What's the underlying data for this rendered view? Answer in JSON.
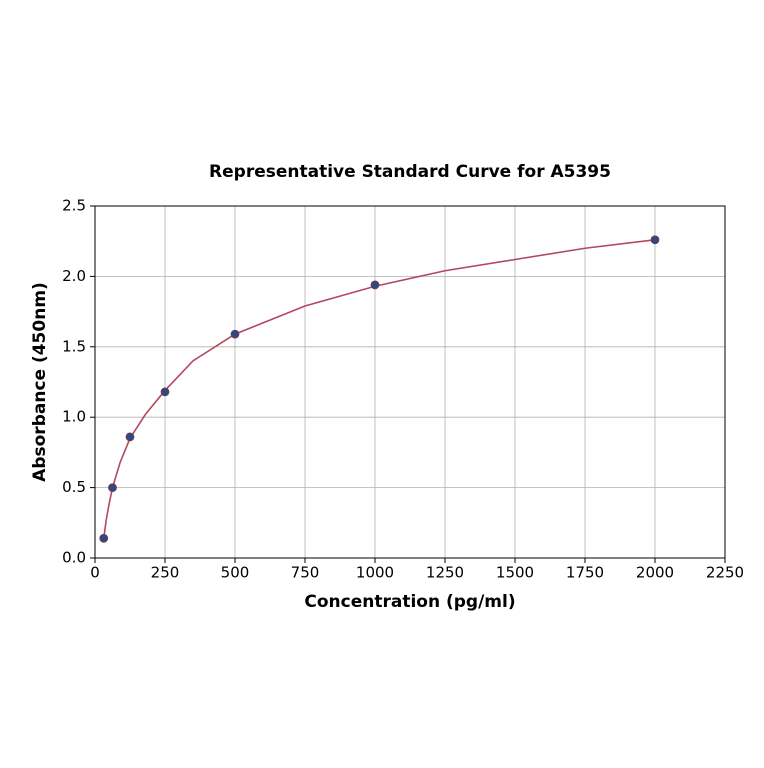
{
  "chart_data": {
    "type": "scatter",
    "title": "Representative Standard Curve for A5395",
    "x_label": "Concentration (pg/ml)",
    "y_label": "Absorbance (450nm)",
    "series": [
      {
        "type": "line",
        "color": "#b5475f",
        "x": [
          31.25,
          40,
          50,
          62.5,
          90,
          125,
          180,
          250,
          350,
          500,
          750,
          1000,
          1250,
          1500,
          1750,
          2000
        ],
        "values": [
          0.14,
          0.27,
          0.38,
          0.5,
          0.68,
          0.85,
          1.02,
          1.19,
          1.4,
          1.59,
          1.79,
          1.93,
          2.04,
          2.12,
          2.2,
          2.26
        ]
      },
      {
        "type": "scatter",
        "color": "#2e4a7d",
        "x": [
          31.25,
          62.5,
          125,
          250,
          500,
          1000,
          2000
        ],
        "values": [
          0.14,
          0.5,
          0.86,
          1.18,
          1.59,
          1.94,
          2.26
        ]
      }
    ],
    "xlim": [
      0,
      2250
    ],
    "xticks": [
      0,
      250,
      500,
      750,
      1000,
      1250,
      1500,
      1750,
      2000,
      2250
    ],
    "ylim": [
      0,
      2.5
    ],
    "yticks": [
      {
        "value": 0,
        "label": "0.0"
      },
      0.5,
      {
        "value": 1,
        "label": "1.0"
      },
      1.5,
      {
        "value": 2,
        "label": "2.0"
      },
      2.5
    ],
    "grid": true
  }
}
